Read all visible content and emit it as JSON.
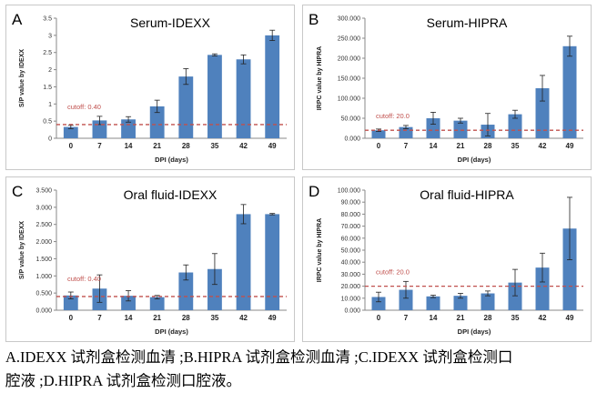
{
  "chart_data": [
    {
      "panel_letter": "A",
      "type": "bar",
      "title": "Serum-IDEXX",
      "xlabel": "DPI (days)",
      "ylabel": "S/P value by IDEXX",
      "categories": [
        "0",
        "7",
        "14",
        "21",
        "28",
        "35",
        "42",
        "49"
      ],
      "values": [
        0.33,
        0.52,
        0.55,
        0.93,
        1.8,
        2.43,
        2.3,
        3.0
      ],
      "errors": [
        0.05,
        0.12,
        0.08,
        0.18,
        0.23,
        0.03,
        0.13,
        0.15
      ],
      "ylim": [
        0,
        3.5
      ],
      "yticks": [
        "0",
        "0.5",
        "1",
        "1.5",
        "2",
        "2.5",
        "3",
        "3.5"
      ],
      "cutoff": 0.4,
      "cutoff_label": "cutoff: 0.40",
      "bar_color": "#4f81bd",
      "cutoff_color": "#c0504d"
    },
    {
      "panel_letter": "B",
      "type": "bar",
      "title": "Serum-HIPRA",
      "xlabel": "DPI (days)",
      "ylabel": "IRPC value by HIPRA",
      "categories": [
        "0",
        "7",
        "14",
        "21",
        "28",
        "35",
        "42",
        "49"
      ],
      "values": [
        20,
        28,
        50,
        44,
        34,
        60,
        125,
        230
      ],
      "errors": [
        3,
        4,
        15,
        6,
        28,
        10,
        32,
        25
      ],
      "ylim": [
        0,
        300
      ],
      "yticks": [
        "0.000",
        "50.000",
        "100.000",
        "150.000",
        "200.000",
        "250.000",
        "300.000"
      ],
      "cutoff": 20,
      "cutoff_label": "cutoff: 20.0",
      "bar_color": "#4f81bd",
      "cutoff_color": "#c0504d"
    },
    {
      "panel_letter": "C",
      "type": "bar",
      "title": "Oral fluid-IDEXX",
      "xlabel": "DPI (days)",
      "ylabel": "S/P value by IDEXX",
      "categories": [
        "0",
        "7",
        "14",
        "21",
        "28",
        "35",
        "42",
        "49"
      ],
      "values": [
        0.43,
        0.63,
        0.42,
        0.38,
        1.1,
        1.2,
        2.8,
        2.8
      ],
      "errors": [
        0.1,
        0.4,
        0.15,
        0.05,
        0.22,
        0.45,
        0.28,
        0.02
      ],
      "ylim": [
        0,
        3.5
      ],
      "yticks": [
        "0.000",
        "0.500",
        "1.000",
        "1.500",
        "2.000",
        "2.500",
        "3.000",
        "3.500"
      ],
      "cutoff": 0.4,
      "cutoff_label": "cutoff: 0.40",
      "bar_color": "#4f81bd",
      "cutoff_color": "#c0504d"
    },
    {
      "panel_letter": "D",
      "type": "bar",
      "title": "Oral fluid-HIPRA",
      "xlabel": "DPI (days)",
      "ylabel": "IRPC value by HIPRA",
      "categories": [
        "0",
        "7",
        "14",
        "21",
        "28",
        "35",
        "42",
        "49"
      ],
      "values": [
        11,
        17,
        11.5,
        12,
        14,
        23,
        35.5,
        68
      ],
      "errors": [
        4,
        7,
        1,
        2,
        2,
        11,
        12,
        26
      ],
      "ylim": [
        0,
        100
      ],
      "yticks": [
        "0.000",
        "10.000",
        "20.000",
        "30.000",
        "40.000",
        "50.000",
        "60.000",
        "70.000",
        "80.000",
        "90.000",
        "100.000"
      ],
      "cutoff": 20,
      "cutoff_label": "cutoff: 20.0",
      "bar_color": "#4f81bd",
      "cutoff_color": "#c0504d"
    }
  ],
  "caption": {
    "line1": "A.IDEXX 试剂盒检测血清 ;B.HIPRA 试剂盒检测血清 ;C.IDEXX 试剂盒检测口",
    "line2": "腔液 ;D.HIPRA 试剂盒检测口腔液。"
  }
}
